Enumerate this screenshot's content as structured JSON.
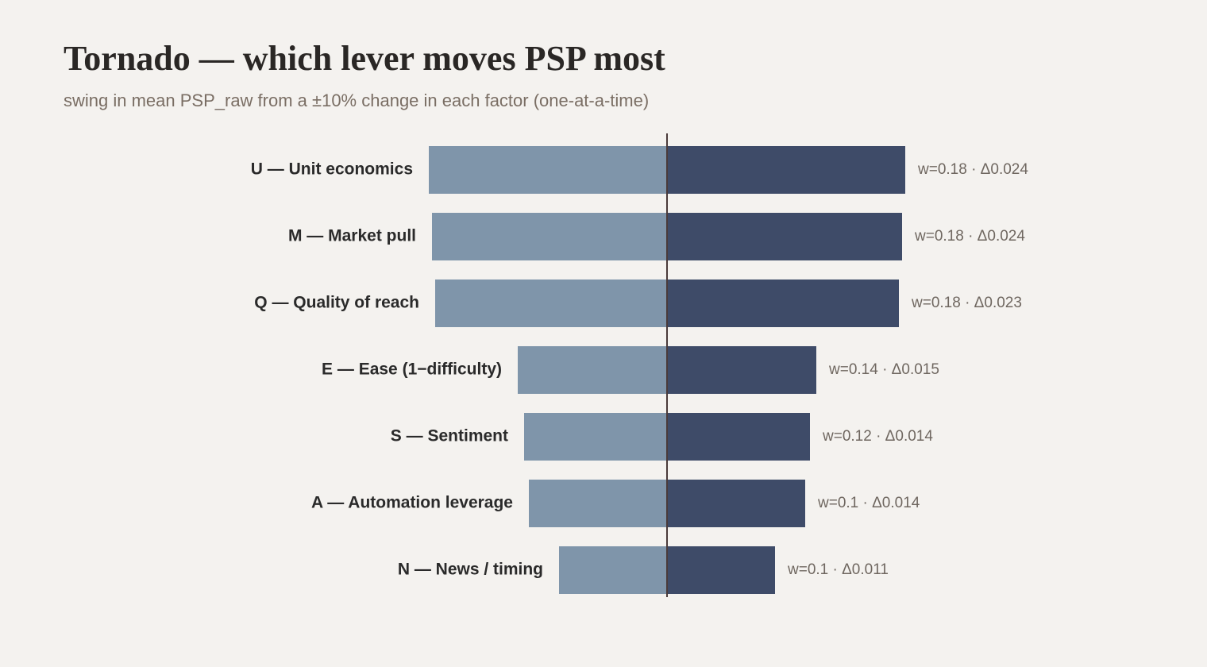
{
  "chart_data": {
    "type": "tornado",
    "title": "Tornado — which lever moves PSP most",
    "subtitle": "swing in mean PSP_raw from a ±10% change in each factor (one-at-a-time)",
    "categories": [
      "U — Unit economics",
      "M — Market pull",
      "Q — Quality of reach",
      "E — Ease (1−difficulty)",
      "S — Sentiment",
      "A — Automation leverage",
      "N — News / timing"
    ],
    "low_values": [
      -0.012,
      -0.01184,
      -0.01168,
      -0.00752,
      -0.0072,
      -0.00696,
      -0.00544
    ],
    "high_values": [
      0.012,
      0.01184,
      0.01168,
      0.00752,
      0.0072,
      0.00696,
      0.00544
    ],
    "bar_labels": [
      "w=0.18 · Δ0.024",
      "w=0.18 · Δ0.024",
      "w=0.18 · Δ0.023",
      "w=0.14 · Δ0.015",
      "w=0.12 · Δ0.014",
      "w=0.1 · Δ0.014",
      "w=0.1 · Δ0.011"
    ],
    "low_color": "#7f95aa",
    "high_color": "#3e4b68"
  }
}
